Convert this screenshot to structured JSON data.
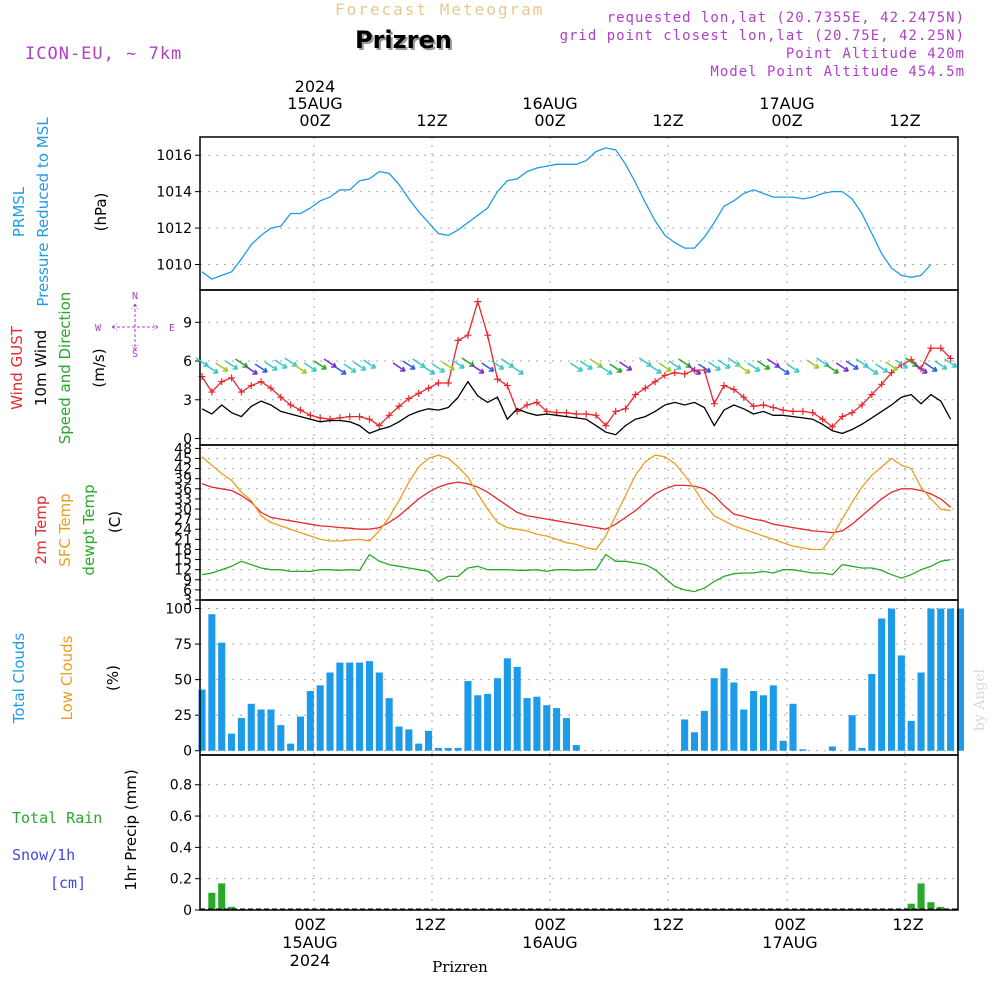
{
  "header": {
    "title": "Forecast Meteogram",
    "station": "Prizren",
    "model": "ICON-EU, ~ 7km",
    "info": [
      "requested lon,lat (20.7355E, 42.2475N)",
      "grid point closest lon,lat (20.75E, 42.25N)",
      "Point Altitude 420m",
      "Model Point Altitude 454.5m"
    ]
  },
  "footer": {
    "station": "Prizren",
    "credit": "by Angel"
  },
  "time_axis": {
    "top_labels": [
      {
        "line1": "2024",
        "line2": "15AUG",
        "line3": "00Z"
      },
      {
        "line1": "",
        "line2": "",
        "line3": "12Z"
      },
      {
        "line1": "",
        "line2": "16AUG",
        "line3": "00Z"
      },
      {
        "line1": "",
        "line2": "",
        "line3": "12Z"
      },
      {
        "line1": "",
        "line2": "17AUG",
        "line3": "00Z"
      },
      {
        "line1": "",
        "line2": "",
        "line3": "12Z"
      }
    ],
    "bottom_labels": [
      {
        "line1": "00Z",
        "line2": "15AUG",
        "line3": "2024"
      },
      {
        "line1": "12Z",
        "line2": "",
        "line3": ""
      },
      {
        "line1": "00Z",
        "line2": "16AUG",
        "line3": ""
      },
      {
        "line1": "12Z",
        "line2": "",
        "line3": ""
      },
      {
        "line1": "00Z",
        "line2": "17AUG",
        "line3": ""
      },
      {
        "line1": "12Z",
        "line2": "",
        "line3": ""
      }
    ]
  },
  "chart_data": [
    {
      "type": "line",
      "panel": "pressure",
      "ylabel_lines": [
        {
          "text": "PRMSL",
          "color": "#1e9be8"
        },
        {
          "text": "Pressure Reduced to MSL",
          "color": "#1e9be8"
        },
        {
          "text": "(hPa)",
          "color": "#000000"
        }
      ],
      "yticks": [
        "1010",
        "1012",
        "1014",
        "1016"
      ],
      "ylim": [
        1008.6,
        1017
      ],
      "x_unit": "hours from 2024-08-14 15Z",
      "series": [
        {
          "color": "#1e9be8",
          "x_start": 0,
          "x_step": 1,
          "values": [
            1009.6,
            1009.2,
            1009.4,
            1009.6,
            1010.3,
            1011.1,
            1011.6,
            1012.0,
            1012.1,
            1012.8,
            1012.8,
            1013.1,
            1013.5,
            1013.7,
            1014.1,
            1014.1,
            1014.6,
            1014.7,
            1015.1,
            1015.0,
            1014.4,
            1013.6,
            1012.9,
            1012.3,
            1011.7,
            1011.6,
            1011.9,
            1012.3,
            1012.7,
            1013.1,
            1014.0,
            1014.6,
            1014.7,
            1015.1,
            1015.3,
            1015.4,
            1015.5,
            1015.5,
            1015.5,
            1015.7,
            1016.2,
            1016.4,
            1016.3,
            1015.5,
            1014.5,
            1013.4,
            1012.4,
            1011.6,
            1011.2,
            1010.9,
            1010.9,
            1011.5,
            1012.3,
            1013.2,
            1013.5,
            1013.9,
            1014.1,
            1013.9,
            1013.7,
            1013.7,
            1013.7,
            1013.6,
            1013.7,
            1013.9,
            1014.0,
            1014.0,
            1013.6,
            1012.8,
            1011.7,
            1010.6,
            1009.8,
            1009.4,
            1009.3,
            1009.4,
            1010.0
          ]
        }
      ]
    },
    {
      "type": "line",
      "panel": "wind",
      "ylabel_lines": [
        {
          "text": "Wind GUST",
          "color": "#e8282f"
        },
        {
          "text": "10m Wind",
          "color": "#000000"
        },
        {
          "text": "Speed and Direction",
          "color": "#2aa82a"
        },
        {
          "text": "(m/s)",
          "color": "#000000"
        }
      ],
      "compass": {
        "n": "N",
        "s": "S",
        "w": "W",
        "e": "E"
      },
      "yticks": [
        "0",
        "3",
        "6",
        "9"
      ],
      "ylim": [
        -0.5,
        11.5
      ],
      "series": [
        {
          "color": "#e8282f",
          "markers": "plus",
          "x_start": 0,
          "x_step": 1,
          "values": [
            4.8,
            3.6,
            4.4,
            4.7,
            3.6,
            4.1,
            4.4,
            3.9,
            3.2,
            2.6,
            2.2,
            1.8,
            1.6,
            1.5,
            1.6,
            1.7,
            1.7,
            1.5,
            1.0,
            1.8,
            2.5,
            3.1,
            3.5,
            3.9,
            4.3,
            4.3,
            7.6,
            8.0,
            10.6,
            8.0,
            4.6,
            4.1,
            2.1,
            2.6,
            2.8,
            2.1,
            2.0,
            2.0,
            1.9,
            1.9,
            1.8,
            1.0,
            2.1,
            2.3,
            3.4,
            3.9,
            4.4,
            4.9,
            5.1,
            5.0,
            5.3,
            5.3,
            2.7,
            4.1,
            3.8,
            3.2,
            2.5,
            2.6,
            2.4,
            2.2,
            2.1,
            2.1,
            2.0,
            1.5,
            0.9,
            1.7,
            2.0,
            2.6,
            3.4,
            4.2,
            5.1,
            5.7,
            6.1,
            5.4,
            7.0,
            7.0,
            6.2
          ]
        },
        {
          "color": "#000000",
          "markers": "none",
          "x_start": 0,
          "x_step": 1,
          "values": [
            2.3,
            1.9,
            2.6,
            2.0,
            1.7,
            2.5,
            2.9,
            2.6,
            2.1,
            1.9,
            1.7,
            1.5,
            1.3,
            1.4,
            1.4,
            1.3,
            1.0,
            0.4,
            0.7,
            0.9,
            1.3,
            1.8,
            2.1,
            2.3,
            2.2,
            2.4,
            3.2,
            4.4,
            3.3,
            2.8,
            3.2,
            1.5,
            2.3,
            2.0,
            1.8,
            1.9,
            1.8,
            1.7,
            1.6,
            1.5,
            1.0,
            0.5,
            0.3,
            1.0,
            1.5,
            1.7,
            2.1,
            2.6,
            2.8,
            2.6,
            2.8,
            2.4,
            1.0,
            2.2,
            2.6,
            2.3,
            1.9,
            2.1,
            1.8,
            1.8,
            1.7,
            1.6,
            1.5,
            1.1,
            0.6,
            0.4,
            0.7,
            1.1,
            1.6,
            2.1,
            2.6,
            3.2,
            3.4,
            2.7,
            3.4,
            2.9,
            1.5
          ]
        }
      ]
    },
    {
      "type": "line",
      "panel": "temperature",
      "ylabel_lines": [
        {
          "text": "2m Temp",
          "color": "#e8282f"
        },
        {
          "text": "SFC Temp",
          "color": "#e8a020"
        },
        {
          "text": "dewpt Temp",
          "color": "#2aa82a"
        },
        {
          "text": "(C)",
          "color": "#000000"
        }
      ],
      "yticks": [
        "3",
        "6",
        "9",
        "12",
        "15",
        "18",
        "21",
        "24",
        "27",
        "30",
        "33",
        "36",
        "39",
        "42",
        "45",
        "48"
      ],
      "ylim": [
        3,
        49
      ],
      "series": [
        {
          "name": "2m Temp",
          "color": "#e8282f",
          "x_start": 0,
          "x_step": 1,
          "values": [
            37.5,
            36.5,
            36.0,
            35.5,
            34.0,
            32.0,
            29.0,
            27.5,
            27.0,
            26.5,
            26.0,
            25.5,
            25.0,
            24.8,
            24.5,
            24.3,
            24.0,
            24.0,
            24.5,
            26.0,
            28.0,
            30.5,
            33.0,
            35.0,
            36.5,
            37.5,
            38.0,
            37.5,
            36.5,
            35.0,
            33.0,
            31.0,
            29.0,
            28.0,
            27.5,
            27.0,
            26.5,
            26.0,
            25.5,
            25.0,
            24.5,
            24.0,
            25.5,
            27.5,
            29.5,
            32.0,
            34.5,
            36.0,
            37.0,
            37.0,
            36.8,
            36.0,
            34.0,
            31.0,
            28.5,
            27.8,
            27.0,
            26.5,
            25.5,
            25.0,
            24.5,
            24.0,
            23.5,
            23.3,
            23.0,
            23.5,
            25.5,
            28.0,
            30.5,
            33.0,
            35.0,
            36.0,
            36.0,
            35.5,
            34.5,
            33.0,
            30.5
          ]
        },
        {
          "name": "SFC Temp",
          "color": "#e8a020",
          "x_start": 0,
          "x_step": 1,
          "values": [
            45.5,
            43.0,
            40.5,
            38.5,
            35.0,
            32.5,
            28.0,
            26.0,
            25.0,
            24.0,
            23.0,
            22.0,
            21.0,
            20.5,
            20.5,
            20.8,
            21.0,
            20.5,
            23.5,
            27.5,
            32.5,
            38.0,
            42.5,
            45.0,
            46.0,
            45.0,
            42.5,
            39.5,
            34.5,
            30.0,
            26.0,
            24.5,
            24.0,
            23.5,
            22.5,
            22.0,
            21.0,
            20.0,
            19.5,
            18.5,
            18.0,
            22.0,
            28.0,
            34.0,
            40.0,
            44.0,
            46.0,
            45.5,
            43.5,
            40.0,
            36.0,
            31.5,
            28.0,
            26.5,
            25.0,
            24.0,
            23.0,
            22.0,
            21.0,
            20.0,
            19.0,
            18.5,
            18.0,
            18.0,
            22.0,
            27.0,
            32.0,
            36.5,
            40.0,
            42.5,
            45.0,
            43.0,
            42.0,
            36.5,
            33.0,
            30.0,
            29.5
          ]
        },
        {
          "name": "dewpt Temp",
          "color": "#2aa82a",
          "x_start": 0,
          "x_step": 1,
          "values": [
            10.5,
            11.0,
            12.0,
            13.0,
            14.5,
            13.5,
            12.5,
            12.0,
            12.0,
            11.5,
            11.5,
            11.5,
            12.0,
            12.0,
            11.8,
            12.0,
            11.8,
            16.5,
            14.5,
            13.5,
            13.0,
            12.5,
            12.0,
            11.5,
            8.5,
            10.0,
            10.0,
            12.5,
            13.0,
            12.0,
            12.0,
            12.0,
            11.8,
            11.8,
            12.0,
            11.5,
            12.0,
            12.0,
            11.8,
            12.0,
            12.0,
            16.5,
            14.5,
            14.5,
            14.0,
            13.5,
            12.0,
            9.5,
            7.0,
            6.0,
            5.5,
            6.5,
            8.5,
            10.0,
            10.8,
            11.0,
            11.0,
            11.5,
            11.0,
            12.0,
            12.0,
            11.5,
            11.0,
            11.0,
            10.5,
            13.5,
            13.0,
            12.5,
            12.5,
            11.8,
            10.5,
            9.5,
            10.5,
            12.0,
            13.0,
            14.5,
            15.0
          ]
        }
      ]
    },
    {
      "type": "bar",
      "panel": "clouds",
      "ylabel_lines": [
        {
          "text": "Total Clouds",
          "color": "#1e9be8"
        },
        {
          "text": "Low Clouds",
          "color": "#e8a020"
        },
        {
          "text": "(%)",
          "color": "#000000"
        }
      ],
      "yticks": [
        "0",
        "25",
        "50",
        "75",
        "100"
      ],
      "ylim": [
        -3,
        106
      ],
      "series": [
        {
          "name": "Total Clouds",
          "color": "#1e9be8",
          "x_start": 0,
          "x_step": 1,
          "values": [
            43,
            96,
            76,
            12,
            23,
            33,
            29,
            29,
            18,
            5,
            24,
            42,
            46,
            55,
            62,
            62,
            62,
            63,
            55,
            37,
            17,
            15,
            5,
            14,
            2,
            2,
            2,
            49,
            39,
            40,
            51,
            65,
            59,
            37,
            38,
            32,
            30,
            23,
            4,
            0,
            0,
            0,
            0,
            0,
            0,
            0,
            0,
            0,
            0,
            22,
            13,
            28,
            51,
            58,
            48,
            29,
            42,
            39,
            46,
            7,
            33,
            1,
            0,
            0,
            3,
            0,
            25,
            2,
            54,
            93,
            100,
            67,
            21,
            55,
            100,
            100,
            100,
            100
          ]
        }
      ]
    },
    {
      "type": "bar",
      "panel": "precipitation",
      "ylabel_lines": [
        {
          "text": "Total  Rain",
          "color": "#2aa82a"
        },
        {
          "text": "Snow/1h",
          "color": "#4048e0"
        },
        {
          "text": "[cm]",
          "color": "#4048e0"
        },
        {
          "text": "1hr Precip (mm)",
          "color": "#000000"
        }
      ],
      "yticks": [
        "0",
        "0.2",
        "0.4",
        "0.6",
        "0.8"
      ],
      "ylim": [
        0,
        0.99
      ],
      "series": [
        {
          "name": "Total Rain",
          "color": "#2aa82a",
          "x_start": 0,
          "x_step": 1,
          "values": [
            0,
            0.11,
            0.17,
            0.02,
            0,
            0,
            0,
            0,
            0,
            0,
            0,
            0,
            0,
            0,
            0,
            0,
            0,
            0,
            0,
            0,
            0,
            0,
            0,
            0,
            0,
            0,
            0,
            0,
            0,
            0,
            0,
            0,
            0,
            0,
            0,
            0,
            0,
            0,
            0,
            0,
            0,
            0,
            0,
            0,
            0,
            0,
            0,
            0,
            0,
            0,
            0,
            0,
            0,
            0,
            0,
            0,
            0,
            0,
            0,
            0,
            0,
            0,
            0,
            0,
            0,
            0,
            0,
            0,
            0,
            0,
            0,
            0,
            0.04,
            0.17,
            0.05,
            0.02
          ]
        }
      ]
    }
  ]
}
